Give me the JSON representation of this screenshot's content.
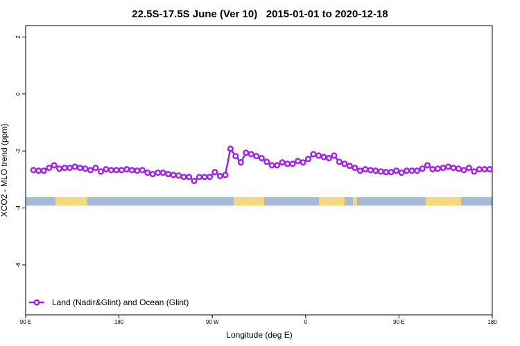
{
  "chart_data": {
    "type": "line",
    "title": "22.5S-17.5S June (Ver 10)   2015-01-01 to 2020-12-18",
    "x_label": "Longitude (deg E)",
    "y_label": "XCO2 - MLO trend (ppm)",
    "xlim": [
      90,
      540
    ],
    "xticks": [
      {
        "value": 90,
        "label": "90 E"
      },
      180,
      {
        "value": 270,
        "label": "90 W"
      },
      {
        "value": 360,
        "label": "0"
      },
      {
        "value": 450,
        "label": "90 E"
      },
      {
        "value": 540,
        "label": "180"
      }
    ],
    "ylim": [
      -7.75,
      2.4
    ],
    "yticks": [
      2,
      0,
      -2,
      -4,
      -6
    ],
    "legend": "bottom-left",
    "x": [
      97.5,
      102.5,
      107.5,
      112.5,
      117.5,
      122.5,
      127.5,
      132.5,
      137.5,
      142.5,
      147.5,
      152.5,
      157.5,
      162.5,
      167.5,
      172.5,
      177.5,
      182.5,
      187.5,
      192.5,
      197.5,
      202.5,
      207.5,
      212.5,
      217.5,
      222.5,
      227.5,
      232.5,
      237.5,
      242.5,
      247.5,
      252.5,
      257.5,
      262.5,
      267.5,
      272.5,
      277.5,
      282.5,
      287.5,
      292.5,
      297.5,
      302.5,
      307.5,
      312.5,
      317.5,
      322.5,
      327.5,
      332.5,
      337.5,
      342.5,
      347.5,
      352.5,
      357.5,
      362.5,
      367.5,
      372.5,
      377.5,
      382.5,
      387.5,
      392.5,
      397.5,
      402.5,
      407.5,
      412.5,
      417.5,
      422.5,
      427.5,
      432.5,
      437.5,
      442.5,
      447.5,
      452.5,
      457.5,
      462.5,
      467.5,
      472.5,
      477.5,
      482.5,
      487.5,
      492.5,
      497.5,
      502.5,
      507.5,
      512.5,
      517.5,
      522.5,
      527.5,
      532.5,
      537.5
    ],
    "series": [
      {
        "name": "Land (Nadir&Glint) and Ocean (Glint)",
        "color": "#a020f0",
        "values": [
          -2.67,
          -2.69,
          -2.69,
          -2.59,
          -2.5,
          -2.62,
          -2.59,
          -2.59,
          -2.55,
          -2.59,
          -2.62,
          -2.67,
          -2.59,
          -2.72,
          -2.64,
          -2.67,
          -2.67,
          -2.67,
          -2.64,
          -2.67,
          -2.69,
          -2.67,
          -2.76,
          -2.81,
          -2.76,
          -2.76,
          -2.81,
          -2.84,
          -2.86,
          -2.91,
          -2.91,
          -3.05,
          -2.91,
          -2.91,
          -2.91,
          -2.74,
          -2.88,
          -2.84,
          -1.92,
          -2.18,
          -2.4,
          -2.06,
          -2.11,
          -2.18,
          -2.25,
          -2.38,
          -2.5,
          -2.5,
          -2.4,
          -2.45,
          -2.45,
          -2.35,
          -2.4,
          -2.28,
          -2.11,
          -2.16,
          -2.21,
          -2.25,
          -2.16,
          -2.38,
          -2.45,
          -2.52,
          -2.59,
          -2.69,
          -2.64,
          -2.67,
          -2.69,
          -2.72,
          -2.74,
          -2.74,
          -2.69,
          -2.76,
          -2.69,
          -2.69,
          -2.69,
          -2.62,
          -2.5,
          -2.64,
          -2.62,
          -2.59,
          -2.55,
          -2.59,
          -2.62,
          -2.67,
          -2.59,
          -2.72,
          -2.64,
          -2.64,
          -2.64
        ]
      }
    ]
  }
}
